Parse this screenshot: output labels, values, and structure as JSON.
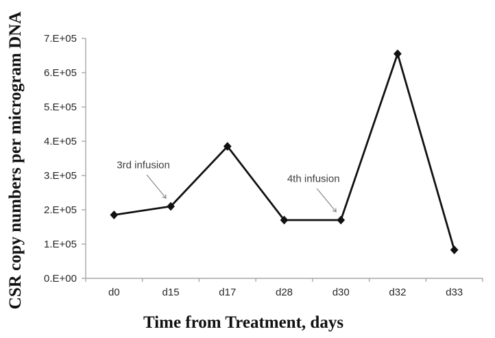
{
  "chart_data": {
    "type": "line",
    "title": "",
    "xlabel": "Time from Treatment, days",
    "ylabel": "CSR copy numbers per microgram DNA",
    "categories": [
      "d0",
      "d15",
      "d17",
      "d28",
      "d30",
      "d32",
      "d33"
    ],
    "series": [
      {
        "name": "CSR copy numbers per microgram DNA",
        "values": [
          185000,
          210000,
          385000,
          170000,
          170000,
          655000,
          83000
        ]
      }
    ],
    "ylim": [
      0,
      700000
    ],
    "y_tick_labels": [
      "0.E+00",
      "1.E+05",
      "2.E+05",
      "3.E+05",
      "4.E+05",
      "5.E+05",
      "6.E+05",
      "7.E+05"
    ],
    "grid": "off",
    "legend": "none",
    "marker": "diamond",
    "annotations": [
      {
        "text": "3rd infusion",
        "target_category": "d15"
      },
      {
        "text": "4th infusion",
        "target_category": "d30"
      }
    ],
    "colors": {
      "line": "#111111",
      "marker": "#111111",
      "axis": "#a6a6a6",
      "tick_text": "#262626",
      "annotation_text": "#3d3d3d",
      "arrow": "#8c8c8c",
      "background": "#ffffff"
    }
  }
}
